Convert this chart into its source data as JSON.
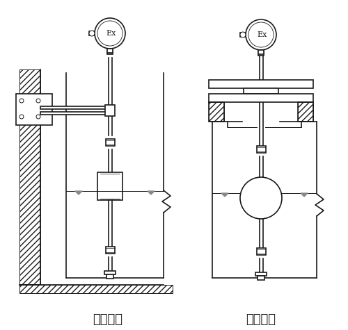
{
  "title_left": "架装固定",
  "title_right": "法兰固定",
  "bg_color": "#ffffff",
  "line_color": "#1a1a1a",
  "font_size_label": 13,
  "fig_width": 5.0,
  "fig_height": 4.75,
  "dpi": 100
}
